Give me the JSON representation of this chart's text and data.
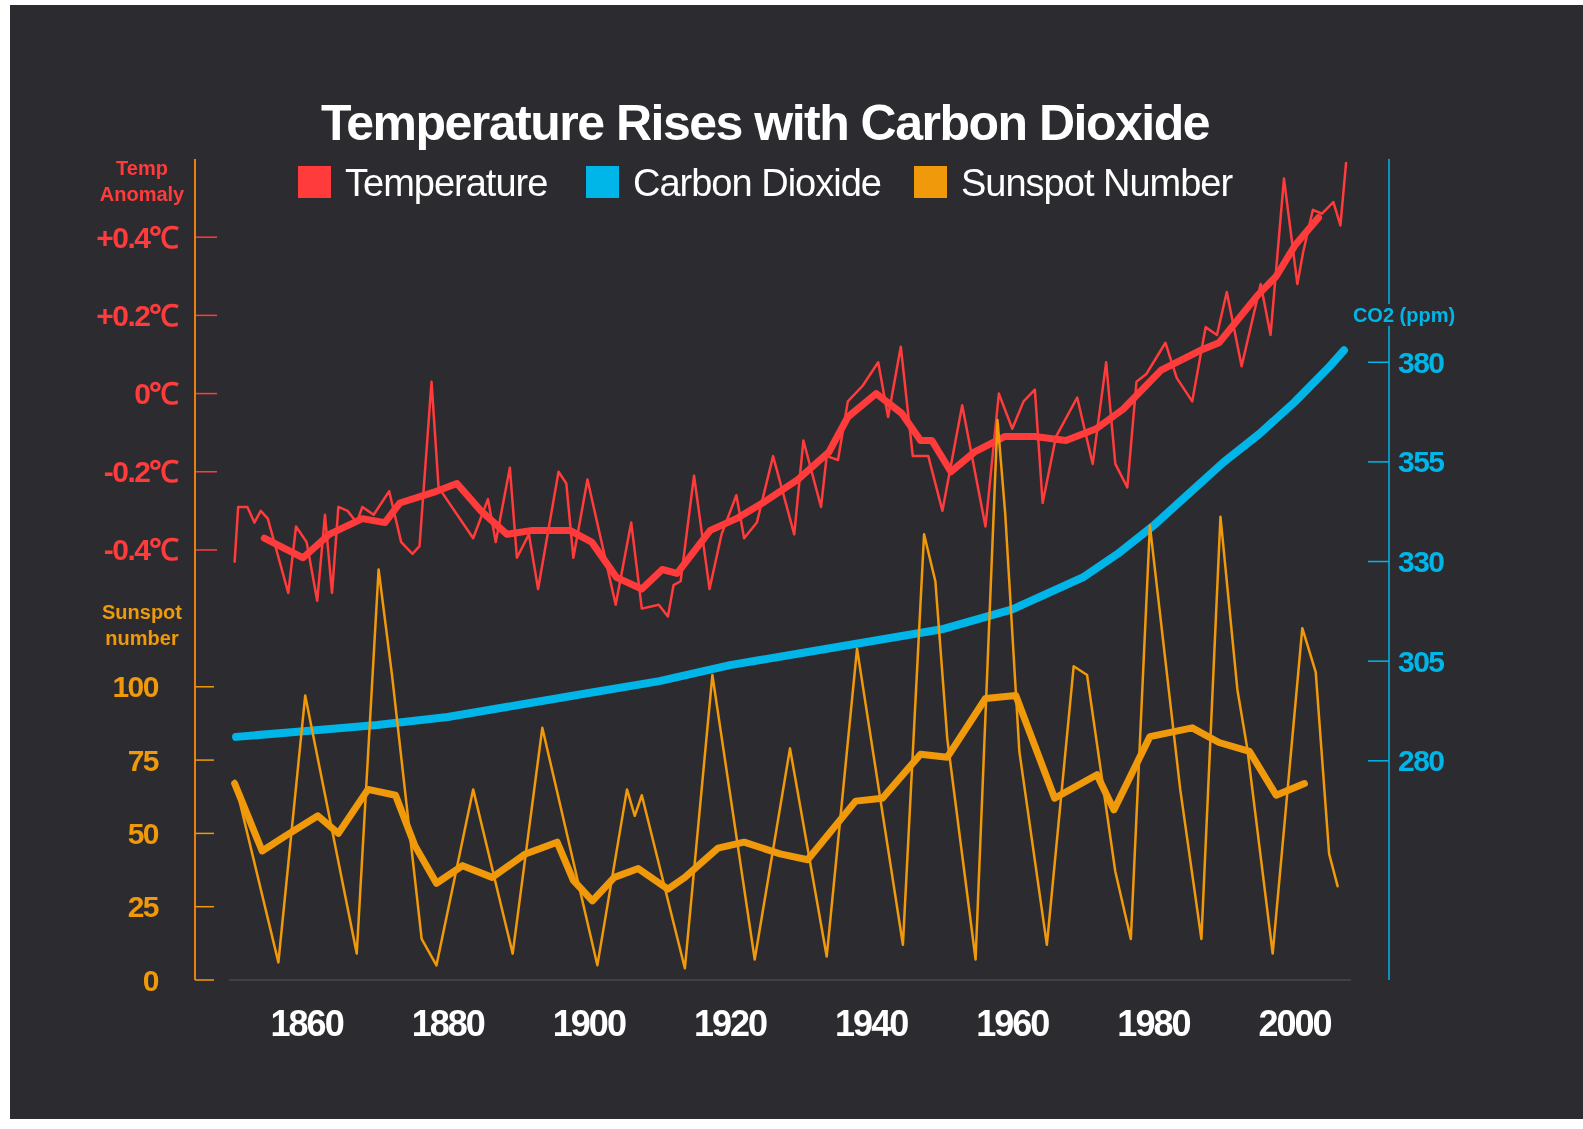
{
  "chart_data": {
    "type": "line",
    "title": "Temperature Rises with Carbon Dioxide",
    "ylabel": "Temp Anomaly",
    "y2label": "CO2 (ppm)",
    "y3label": "Sunspot number",
    "legend": "top",
    "xlim": [
      1849,
      2008
    ],
    "xticks": [
      1860,
      1880,
      1900,
      1920,
      1940,
      1960,
      1980,
      2000
    ],
    "ylim": [
      -1.5,
      0.6
    ],
    "yticks": [
      {
        "value": -0.4,
        "label": "-0.4℃"
      },
      {
        "value": -0.2,
        "label": "-0.2℃"
      },
      {
        "value": 0,
        "label": "0℃"
      },
      {
        "value": 0.2,
        "label": "+0.2℃"
      },
      {
        "value": 0.4,
        "label": "+0.4℃"
      }
    ],
    "y2lim": [
      225,
      431
    ],
    "y2ticks": [
      280,
      305,
      330,
      355,
      380
    ],
    "y3lim": [
      0,
      280
    ],
    "y3ticks": [
      0,
      25,
      50,
      75,
      100
    ],
    "series": [
      {
        "name": "Temperature",
        "color": "#ff3b3b",
        "x": [
          1849.8,
          1850.3,
          1851.6,
          1852.6,
          1853.5,
          1854.5,
          1857.4,
          1858.5,
          1860,
          1861.5,
          1862.6,
          1863.6,
          1864.5,
          1865.8,
          1867.1,
          1867.9,
          1869.5,
          1871.7,
          1873.4,
          1875,
          1876,
          1877.7,
          1878.7,
          1883.6,
          1885.7,
          1886.8,
          1888.8,
          1889.8,
          1891.5,
          1892.8,
          1895.7,
          1896.8,
          1897.8,
          1899.8,
          1901.8,
          1903.8,
          1906,
          1907.5,
          1909.9,
          1911.2,
          1912,
          1913,
          1914.9,
          1917.1,
          1918.8,
          1920.9,
          1922,
          1923.8,
          1926.1,
          1929.1,
          1930.4,
          1932.9,
          1933.7,
          1935.3,
          1936.7,
          1938.8,
          1941,
          1942.4,
          1944.2,
          1945.9,
          1948.1,
          1950.1,
          1952.9,
          1956.2,
          1958.1,
          1960,
          1961.6,
          1963.2,
          1964.3,
          1966.2,
          1969.2,
          1971.4,
          1973.3,
          1974.6,
          1976.3,
          1977.6,
          1979,
          1981.7,
          1983.3,
          1985.5,
          1987.4,
          1989,
          1990.4,
          1992.5,
          1995.2,
          1996.6,
          1998.5,
          2000.4,
          2001.2,
          2002.6,
          2003.9,
          2005.5,
          2006.5,
          2007.3
        ],
        "values": [
          -0.43,
          -0.29,
          -0.29,
          -0.33,
          -0.3,
          -0.32,
          -0.51,
          -0.34,
          -0.38,
          -0.53,
          -0.31,
          -0.51,
          -0.29,
          -0.3,
          -0.33,
          -0.29,
          -0.31,
          -0.25,
          -0.38,
          -0.41,
          -0.39,
          0.03,
          -0.24,
          -0.37,
          -0.27,
          -0.38,
          -0.19,
          -0.42,
          -0.36,
          -0.5,
          -0.2,
          -0.23,
          -0.42,
          -0.22,
          -0.38,
          -0.54,
          -0.33,
          -0.55,
          -0.54,
          -0.57,
          -0.49,
          -0.48,
          -0.21,
          -0.5,
          -0.36,
          -0.26,
          -0.37,
          -0.33,
          -0.16,
          -0.36,
          -0.12,
          -0.29,
          -0.16,
          -0.17,
          -0.02,
          0.02,
          0.08,
          -0.06,
          0.12,
          -0.16,
          -0.16,
          -0.3,
          -0.03,
          -0.34,
          0,
          -0.09,
          -0.02,
          0.01,
          -0.28,
          -0.11,
          -0.01,
          -0.18,
          0.08,
          -0.18,
          -0.24,
          0.03,
          0.05,
          0.13,
          0.04,
          -0.02,
          0.17,
          0.15,
          0.26,
          0.07,
          0.28,
          0.15,
          0.55,
          0.28,
          0.36,
          0.47,
          0.46,
          0.49,
          0.43,
          0.59
        ]
      },
      {
        "color": "#ff3b3b",
        "x": [
          1854,
          1859.5,
          1863.2,
          1867.9,
          1871.1,
          1873.2,
          1878.4,
          1881.3,
          1884.7,
          1888.4,
          1892,
          1897.3,
          1900.4,
          1903.9,
          1907.5,
          1910.4,
          1912.5,
          1917.2,
          1920.9,
          1924.6,
          1929.6,
          1934,
          1936.7,
          1940.7,
          1944.3,
          1947,
          1948.6,
          1951.3,
          1954.6,
          1958.9,
          1963.2,
          1967.6,
          1971.9,
          1975.7,
          1981.1,
          1986.6,
          1989.3,
          1994.7,
          1997.4,
          2000.1,
          2003.4
        ],
        "values": [
          -0.37,
          -0.42,
          -0.36,
          -0.32,
          -0.33,
          -0.28,
          -0.25,
          -0.23,
          -0.3,
          -0.36,
          -0.35,
          -0.35,
          -0.38,
          -0.47,
          -0.5,
          -0.45,
          -0.46,
          -0.35,
          -0.32,
          -0.28,
          -0.22,
          -0.15,
          -0.06,
          0,
          -0.05,
          -0.12,
          -0.12,
          -0.2,
          -0.15,
          -0.11,
          -0.11,
          -0.12,
          -0.09,
          -0.04,
          0.06,
          0.11,
          0.13,
          0.25,
          0.3,
          0.38,
          0.45
        ]
      },
      {
        "name": "Carbon Dioxide",
        "color": "#00b5e8",
        "axis": "y2",
        "x": [
          1850,
          1860,
          1870,
          1880,
          1890,
          1900,
          1910,
          1920,
          1930,
          1940,
          1950,
          1958,
          1960,
          1965,
          1970,
          1975,
          1980,
          1985,
          1990,
          1995,
          2000,
          2005,
          2007
        ],
        "values": [
          286,
          287.5,
          289,
          291,
          294,
          297,
          300,
          304,
          307,
          310,
          313,
          317,
          318,
          322,
          326,
          332,
          339,
          347,
          355,
          362,
          370,
          379,
          383
        ]
      },
      {
        "name": "Sunspot Number",
        "color": "#f0990a",
        "axis": "y3",
        "x": [
          1849.8,
          1856,
          1859.8,
          1867.1,
          1870.2,
          1872.1,
          1876.3,
          1878.4,
          1883.6,
          1889.2,
          1893.4,
          1901.2,
          1905.4,
          1906.5,
          1907.5,
          1913.6,
          1917.5,
          1923.5,
          1928.5,
          1933.7,
          1938,
          1944.5,
          1947.5,
          1949.1,
          1950.8,
          1954.8,
          1957.9,
          1959,
          1961,
          1964.9,
          1968.7,
          1970.6,
          1974.6,
          1976.8,
          1979.5,
          1983.8,
          1986.8,
          1989.5,
          1991.9,
          1993.3,
          1996.9,
          2001.1,
          2003,
          2004.9,
          2006.1
        ],
        "values": [
          68,
          6,
          97,
          9,
          140,
          104,
          14,
          5,
          65,
          9,
          86,
          5,
          65,
          56,
          63,
          4,
          104,
          7,
          79,
          8,
          113,
          12,
          152,
          136,
          82,
          7,
          191,
          159,
          78,
          12,
          107,
          104,
          37,
          14,
          155,
          65,
          14,
          158,
          99,
          79,
          9,
          120,
          105,
          43,
          32
        ]
      },
      {
        "color": "#f0990a",
        "axis": "y3",
        "x": [
          1849.8,
          1853.7,
          1856.9,
          1861.6,
          1864.5,
          1868.7,
          1872.6,
          1875.3,
          1878.4,
          1882.1,
          1886.3,
          1891,
          1895.5,
          1897.8,
          1900.5,
          1903.6,
          1907,
          1911.2,
          1913.6,
          1918.3,
          1922,
          1927.1,
          1931,
          1937.8,
          1941.6,
          1947,
          1950.8,
          1956.2,
          1960.5,
          1966,
          1972,
          1974.4,
          1979.5,
          1985.5,
          1989.3,
          1993.6,
          1997.4,
          2001.4
        ],
        "values": [
          67,
          44,
          49,
          56,
          50,
          65,
          63,
          46,
          33,
          39,
          35,
          43,
          47,
          34,
          27,
          35,
          38,
          31,
          35,
          45,
          47,
          43,
          41,
          61,
          62,
          77,
          76,
          96,
          97,
          62,
          70,
          58,
          83,
          86,
          81,
          78,
          63,
          67
        ]
      }
    ]
  }
}
